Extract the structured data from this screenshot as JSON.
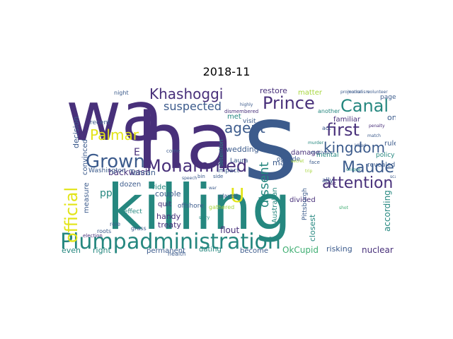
{
  "title": "2018-11",
  "colors": {
    "dark": "#48307a",
    "blue": "#3c5b8c",
    "teal": "#25877f",
    "green": "#3fae72",
    "lime": "#a7d63e",
    "yellow": "#e2e418"
  },
  "words": [
    "wa",
    "ha",
    "s",
    "killing",
    "Plump",
    "administration",
    "official",
    "Grown",
    "Mohammed",
    "Khashoggi",
    "Palmar",
    "agent",
    "Prince",
    "Canal",
    "first",
    "kingdom",
    "Maude",
    "attention",
    "suspected",
    "U",
    "dissent",
    "measure",
    "convinced",
    "decision",
    "backwash",
    "restore",
    "matter",
    "damage",
    "familiar",
    "met",
    "visit",
    "wedding",
    "Laura",
    "detention",
    "page",
    "one",
    "rule",
    "policy",
    "outside",
    "divided",
    "Australian",
    "Pittsburgh",
    "closest",
    "according",
    "risking",
    "nuclear",
    "OkCupid",
    "become",
    "dating",
    "permanent",
    "right",
    "even",
    "health",
    "flout",
    "treaty",
    "quit",
    "handy",
    "couple",
    "ride",
    "dozen",
    "Tehran",
    "effect",
    "roots",
    "offshore",
    "impact",
    "played",
    "gathered",
    "may",
    "ally",
    "revealed",
    "mental",
    "another",
    "act",
    "motivate",
    "face",
    "bin",
    "recent",
    "night",
    "Washington",
    "role",
    "election",
    "grass",
    "side",
    "come",
    "dismembered",
    "highly",
    "volunteer",
    "penalty",
    "match",
    "promotion",
    "journalism",
    "international",
    "campaign",
    "unique",
    "leader",
    "presidential",
    "scandal",
    "killed",
    "shot",
    "trip",
    "murder",
    "war",
    "speech",
    "story",
    "court",
    "secret",
    "pp",
    "E"
  ]
}
